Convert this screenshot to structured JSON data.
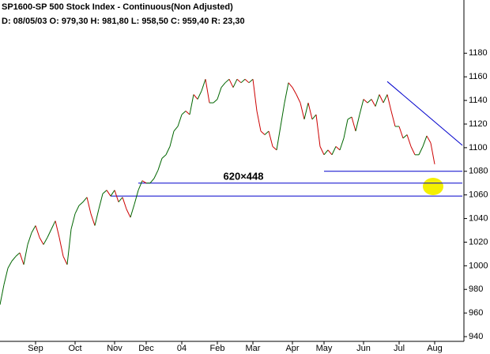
{
  "chart_data": {
    "type": "line",
    "title": "SP1600-SP 500 Stock Index - Continuous(Non Adjusted)",
    "subtitle": "D: 08/05/03 O: 979,30 H: 981,80 L: 958,50 C: 959,40 R: 23,30",
    "watermark": "620×448",
    "categories": [
      null,
      null,
      null,
      null,
      null,
      null,
      null,
      null,
      null,
      "Sep",
      null,
      null,
      null,
      null,
      null,
      null,
      null,
      null,
      null,
      "Oct",
      null,
      null,
      null,
      null,
      null,
      null,
      null,
      null,
      null,
      "Nov",
      null,
      null,
      null,
      null,
      null,
      null,
      null,
      "Dec",
      null,
      null,
      null,
      null,
      null,
      null,
      null,
      null,
      "04",
      null,
      null,
      null,
      null,
      null,
      null,
      null,
      null,
      "Feb",
      null,
      null,
      null,
      null,
      null,
      null,
      null,
      null,
      "Mar",
      null,
      null,
      null,
      null,
      null,
      null,
      null,
      null,
      null,
      "Apr",
      null,
      null,
      null,
      null,
      null,
      null,
      null,
      "May",
      null,
      null,
      null,
      null,
      null,
      null,
      null,
      null,
      null,
      "Jun",
      null,
      null,
      null,
      null,
      null,
      null,
      null,
      null,
      "Jul",
      null,
      null,
      null,
      null,
      null,
      null,
      null,
      null,
      "Aug"
    ],
    "values": [
      967,
      984,
      998,
      1004,
      1008,
      1011,
      1001,
      1018,
      1028,
      1034,
      1024,
      1018,
      1024,
      1031,
      1038,
      1024,
      1008,
      1001,
      1031,
      1044,
      1051,
      1054,
      1058,
      1044,
      1034,
      1048,
      1061,
      1064,
      1059,
      1064,
      1054,
      1058,
      1048,
      1041,
      1052,
      1064,
      1072,
      1070,
      1070,
      1074,
      1081,
      1091,
      1094,
      1101,
      1114,
      1118,
      1128,
      1131,
      1128,
      1145,
      1141,
      1148,
      1158,
      1138,
      1138,
      1141,
      1151,
      1155,
      1158,
      1151,
      1158,
      1155,
      1158,
      1155,
      1158,
      1131,
      1114,
      1111,
      1114,
      1101,
      1098,
      1118,
      1138,
      1155,
      1151,
      1145,
      1138,
      1124,
      1138,
      1124,
      1128,
      1101,
      1094,
      1098,
      1094,
      1101,
      1098,
      1108,
      1124,
      1126,
      1114,
      1128,
      1141,
      1138,
      1141,
      1135,
      1145,
      1138,
      1145,
      1131,
      1118,
      1118,
      1108,
      1111,
      1101,
      1094,
      1094,
      1101,
      1110,
      1104,
      1086
    ],
    "up_color": "#006600",
    "down_color": "#cc0000",
    "ylim": [
      936,
      1213
    ],
    "yticks": [
      940,
      960,
      980,
      1000,
      1020,
      1040,
      1060,
      1080,
      1100,
      1120,
      1140,
      1160,
      1180
    ],
    "trend_lines": [
      {
        "x": [
          82,
          117
        ],
        "y": [
          1080,
          1080
        ]
      },
      {
        "x": [
          35,
          117
        ],
        "y": [
          1070,
          1070
        ]
      },
      {
        "x": [
          28,
          117
        ],
        "y": [
          1059,
          1059
        ]
      },
      {
        "x": [
          98,
          117
        ],
        "y": [
          1156,
          1102
        ]
      }
    ],
    "trend_color": "#0000cc"
  }
}
